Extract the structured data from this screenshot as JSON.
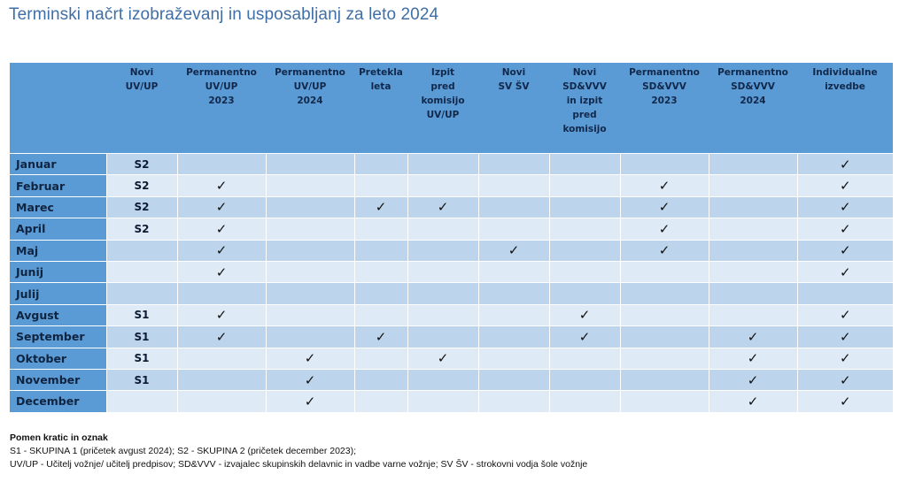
{
  "title": "Terminski načrt izobraževanj in usposabljanj za leto 2024",
  "table": {
    "headers": [
      "",
      "Novi\nUV/UP",
      "Permanentno\nUV/UP\n2023",
      "Permanentno\nUV/UP\n2024",
      "Pretekla\nleta",
      "Izpit\npred\nkomisijo\nUV/UP",
      "Novi\nSV ŠV",
      "Novi\nSD&VVV\nin izpit\npred\nkomisijo",
      "Permanentno\nSD&VVV\n2023",
      "Permanentno\nSD&VVV\n2024",
      "Individualne\nizvedbe"
    ],
    "check_symbol": "✓",
    "rows": [
      {
        "month": "Januar",
        "group": "S2",
        "marks": [
          false,
          false,
          false,
          false,
          false,
          false,
          false,
          false,
          true
        ]
      },
      {
        "month": "Februar",
        "group": "S2",
        "marks": [
          true,
          false,
          false,
          false,
          false,
          false,
          true,
          false,
          true
        ]
      },
      {
        "month": "Marec",
        "group": "S2",
        "marks": [
          true,
          false,
          true,
          true,
          false,
          false,
          true,
          false,
          true
        ]
      },
      {
        "month": "April",
        "group": "S2",
        "marks": [
          true,
          false,
          false,
          false,
          false,
          false,
          true,
          false,
          true
        ]
      },
      {
        "month": "Maj",
        "group": "",
        "marks": [
          true,
          false,
          false,
          false,
          true,
          false,
          true,
          false,
          true
        ]
      },
      {
        "month": "Junij",
        "group": "",
        "marks": [
          true,
          false,
          false,
          false,
          false,
          false,
          false,
          false,
          true
        ]
      },
      {
        "month": "Julij",
        "group": "",
        "marks": [
          false,
          false,
          false,
          false,
          false,
          false,
          false,
          false,
          false
        ]
      },
      {
        "month": "Avgust",
        "group": "S1",
        "marks": [
          true,
          false,
          false,
          false,
          false,
          true,
          false,
          false,
          true
        ]
      },
      {
        "month": "September",
        "group": "S1",
        "marks": [
          true,
          false,
          true,
          false,
          false,
          true,
          false,
          true,
          true
        ]
      },
      {
        "month": "Oktober",
        "group": "S1",
        "marks": [
          false,
          true,
          false,
          true,
          false,
          false,
          false,
          true,
          true
        ]
      },
      {
        "month": "November",
        "group": "S1",
        "marks": [
          false,
          true,
          false,
          false,
          false,
          false,
          false,
          true,
          true
        ]
      },
      {
        "month": "December",
        "group": "",
        "marks": [
          false,
          true,
          false,
          false,
          false,
          false,
          false,
          true,
          true
        ]
      }
    ]
  },
  "legend": {
    "heading": "Pomen kratic in oznak",
    "line1": "S1 - SKUPINA 1 (pričetek avgust 2024);  S2 - SKUPINA 2 (pričetek december 2023);",
    "line2": "UV/UP - Učitelj vožnje/ učitelj predpisov;  SD&VVV - izvajalec skupinskih delavnic in vadbe varne vožnje; SV ŠV - strokovni vodja šole vožnje"
  },
  "colors": {
    "title": "#3f6fa6",
    "header_bg": "#5b9bd5",
    "row_dark": "#bdd5ec",
    "row_light": "#deeaf6"
  }
}
